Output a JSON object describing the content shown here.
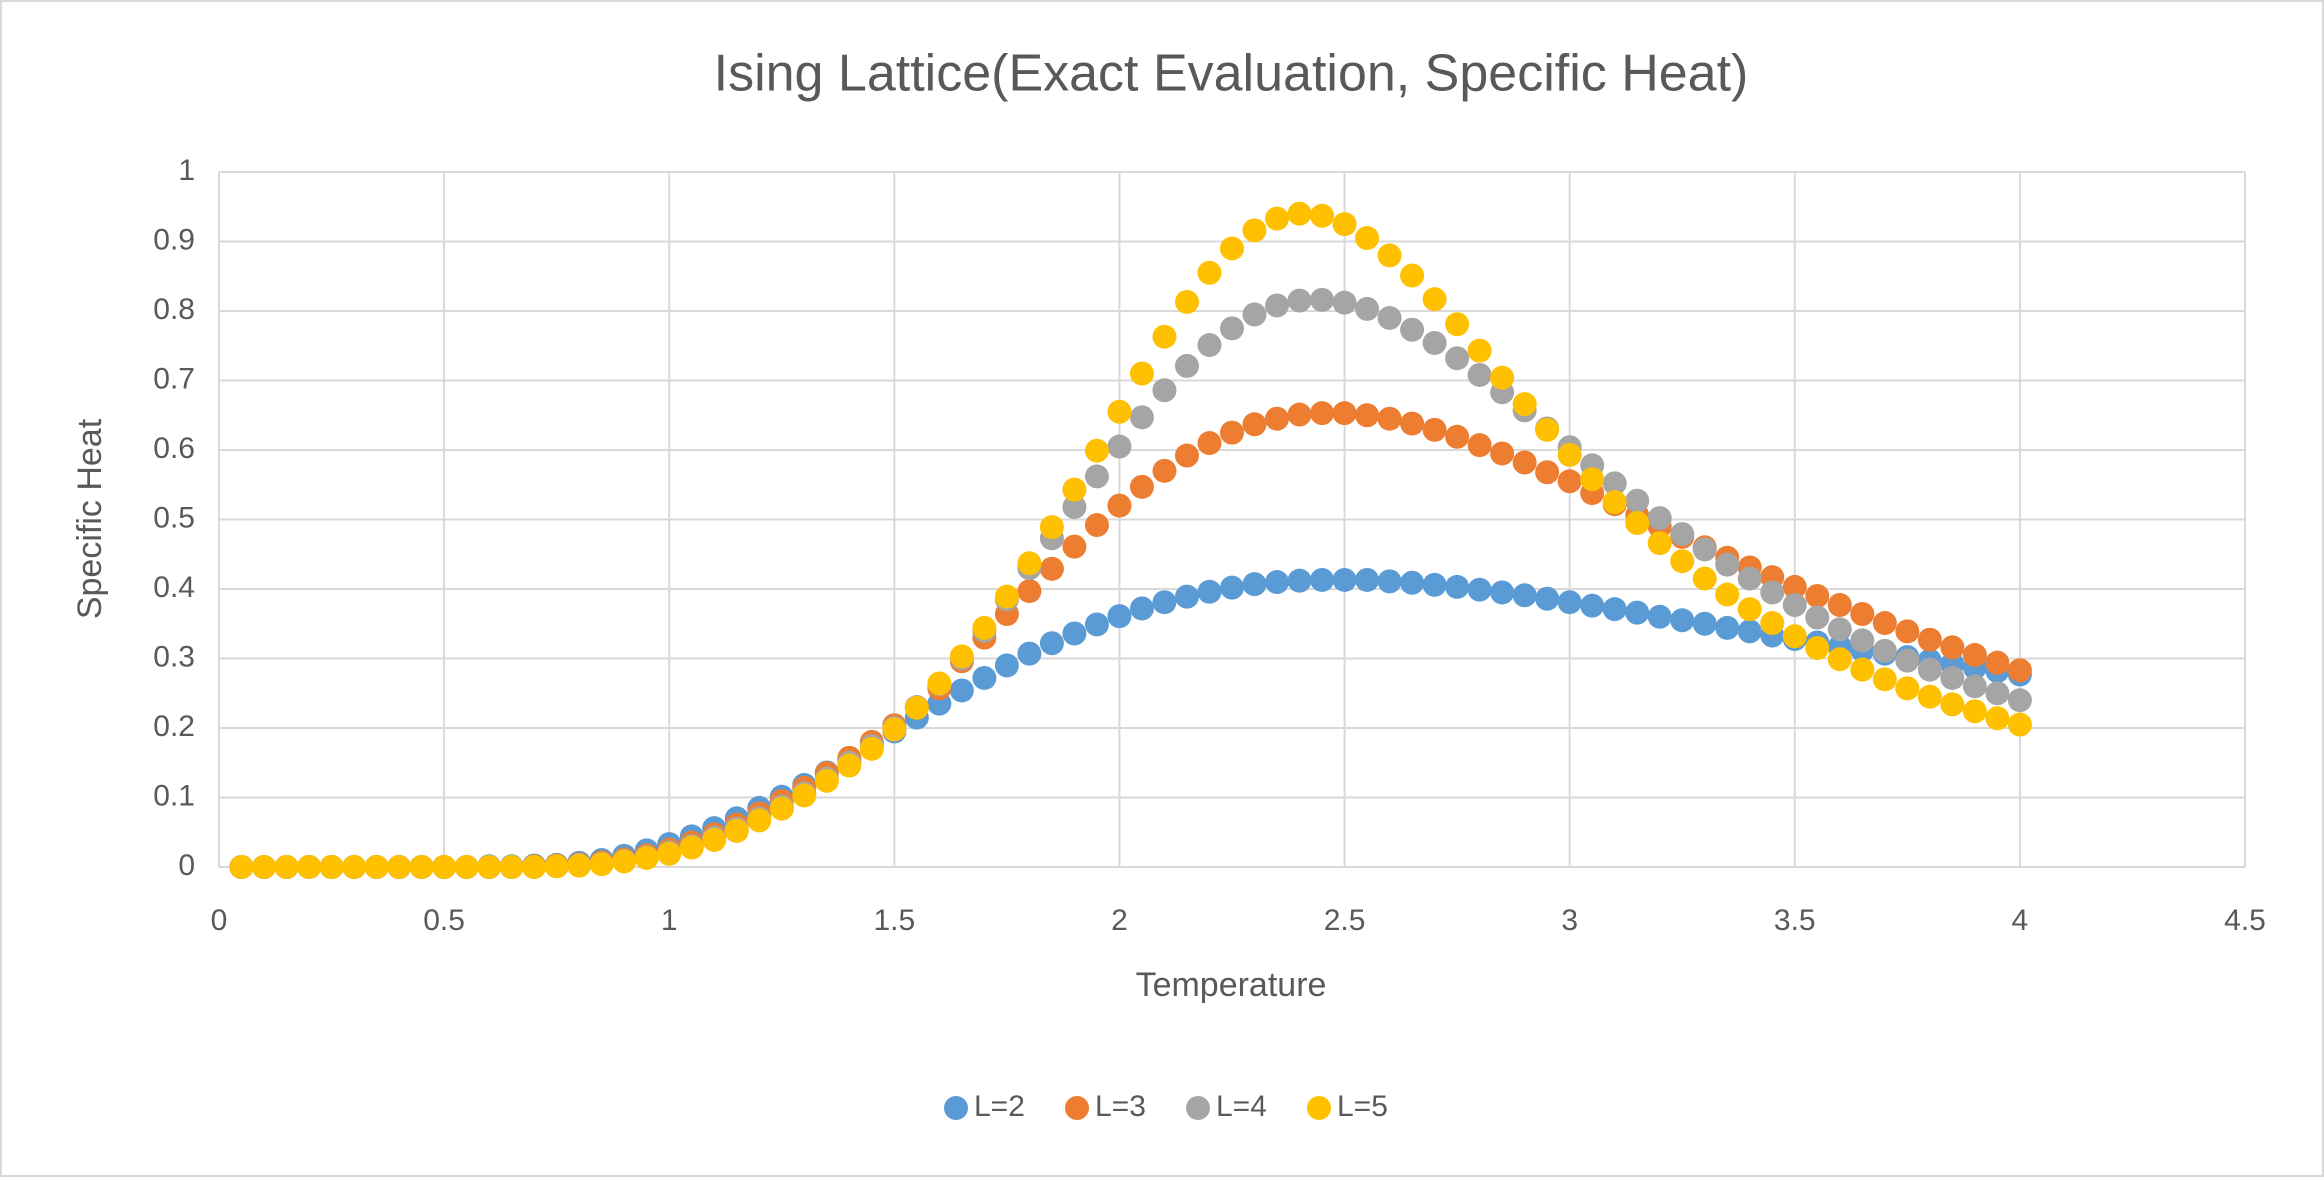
{
  "chart_data": {
    "type": "scatter",
    "title": "Ising Lattice(Exact Evaluation, Specific Heat)",
    "xlabel": "Temperature",
    "ylabel": "Specific Heat",
    "x": [
      0.05,
      0.1,
      0.15,
      0.2,
      0.25,
      0.3,
      0.35,
      0.4,
      0.45,
      0.5,
      0.55,
      0.6,
      0.65,
      0.7,
      0.75,
      0.8,
      0.85,
      0.9,
      0.95,
      1,
      1.05,
      1.1,
      1.15,
      1.2,
      1.25,
      1.3,
      1.35,
      1.4,
      1.45,
      1.5,
      1.55,
      1.6,
      1.65,
      1.7,
      1.75,
      1.8,
      1.85,
      1.9,
      1.95,
      2,
      2.05,
      2.1,
      2.15,
      2.2,
      2.25,
      2.3,
      2.35,
      2.4,
      2.45,
      2.5,
      2.55,
      2.6,
      2.65,
      2.7,
      2.75,
      2.8,
      2.85,
      2.9,
      2.95,
      3,
      3.05,
      3.1,
      3.15,
      3.2,
      3.25,
      3.3,
      3.35,
      3.4,
      3.45,
      3.5,
      3.55,
      3.6,
      3.65,
      3.7,
      3.75,
      3.8,
      3.85,
      3.9,
      3.95,
      4
    ],
    "series": [
      {
        "name": "L=2",
        "color": "#5b9bd5",
        "values": [
          0,
          0,
          0,
          0,
          0,
          0,
          0,
          0,
          0,
          0,
          0,
          0.001,
          0.001,
          0.002,
          0.003,
          0.006,
          0.01,
          0.016,
          0.024,
          0.033,
          0.044,
          0.056,
          0.07,
          0.085,
          0.101,
          0.118,
          0.136,
          0.155,
          0.175,
          0.195,
          0.215,
          0.235,
          0.254,
          0.272,
          0.29,
          0.307,
          0.322,
          0.336,
          0.349,
          0.361,
          0.372,
          0.381,
          0.389,
          0.396,
          0.402,
          0.407,
          0.41,
          0.412,
          0.413,
          0.413,
          0.413,
          0.411,
          0.409,
          0.406,
          0.403,
          0.399,
          0.395,
          0.391,
          0.386,
          0.381,
          0.376,
          0.371,
          0.366,
          0.36,
          0.355,
          0.35,
          0.344,
          0.339,
          0.333,
          0.328,
          0.323,
          0.317,
          0.312,
          0.307,
          0.302,
          0.297,
          0.292,
          0.287,
          0.282,
          0.277
        ]
      },
      {
        "name": "L=3",
        "color": "#ed7d31",
        "values": [
          0,
          0,
          0,
          0,
          0,
          0,
          0,
          0,
          0,
          0,
          0,
          0,
          0,
          0.001,
          0.002,
          0.004,
          0.007,
          0.011,
          0.017,
          0.025,
          0.035,
          0.047,
          0.061,
          0.077,
          0.095,
          0.114,
          0.135,
          0.157,
          0.18,
          0.204,
          0.23,
          0.257,
          0.296,
          0.33,
          0.364,
          0.397,
          0.429,
          0.461,
          0.492,
          0.52,
          0.547,
          0.57,
          0.592,
          0.61,
          0.625,
          0.637,
          0.645,
          0.651,
          0.653,
          0.653,
          0.65,
          0.645,
          0.638,
          0.629,
          0.619,
          0.607,
          0.595,
          0.582,
          0.568,
          0.555,
          0.538,
          0.522,
          0.506,
          0.49,
          0.475,
          0.46,
          0.445,
          0.431,
          0.417,
          0.403,
          0.39,
          0.377,
          0.364,
          0.351,
          0.339,
          0.327,
          0.316,
          0.305,
          0.294,
          0.283
        ]
      },
      {
        "name": "L=4",
        "color": "#a5a5a5",
        "values": [
          0,
          0,
          0,
          0,
          0,
          0,
          0,
          0,
          0,
          0,
          0,
          0,
          0,
          0,
          0.001,
          0.003,
          0.005,
          0.009,
          0.014,
          0.021,
          0.03,
          0.042,
          0.055,
          0.07,
          0.087,
          0.106,
          0.127,
          0.15,
          0.174,
          0.2,
          0.23,
          0.263,
          0.3,
          0.34,
          0.385,
          0.43,
          0.473,
          0.518,
          0.562,
          0.605,
          0.647,
          0.686,
          0.721,
          0.751,
          0.775,
          0.795,
          0.808,
          0.815,
          0.816,
          0.812,
          0.803,
          0.79,
          0.773,
          0.754,
          0.732,
          0.708,
          0.683,
          0.657,
          0.631,
          0.604,
          0.578,
          0.552,
          0.527,
          0.502,
          0.479,
          0.457,
          0.435,
          0.415,
          0.395,
          0.377,
          0.359,
          0.342,
          0.326,
          0.311,
          0.297,
          0.284,
          0.272,
          0.26,
          0.25,
          0.24
        ]
      },
      {
        "name": "L=5",
        "color": "#ffc000",
        "values": [
          0,
          0,
          0,
          0,
          0,
          0,
          0,
          0,
          0,
          0,
          0,
          0,
          0,
          0,
          0.001,
          0.002,
          0.004,
          0.008,
          0.013,
          0.019,
          0.028,
          0.039,
          0.052,
          0.067,
          0.084,
          0.103,
          0.124,
          0.146,
          0.17,
          0.198,
          0.229,
          0.264,
          0.303,
          0.344,
          0.389,
          0.437,
          0.489,
          0.543,
          0.599,
          0.655,
          0.71,
          0.763,
          0.813,
          0.855,
          0.89,
          0.916,
          0.933,
          0.94,
          0.937,
          0.925,
          0.905,
          0.88,
          0.851,
          0.817,
          0.781,
          0.743,
          0.704,
          0.666,
          0.629,
          0.593,
          0.558,
          0.525,
          0.495,
          0.466,
          0.44,
          0.415,
          0.392,
          0.371,
          0.351,
          0.332,
          0.315,
          0.299,
          0.284,
          0.27,
          0.257,
          0.245,
          0.234,
          0.224,
          0.214,
          0.205
        ]
      }
    ],
    "xlim": [
      0,
      4.5
    ],
    "xticks": [
      0,
      0.5,
      1,
      1.5,
      2,
      2.5,
      3,
      3.5,
      4,
      4.5
    ],
    "ylim": [
      0,
      1
    ],
    "yticks": [
      0,
      0.1,
      0.2,
      0.3,
      0.4,
      0.5,
      0.6,
      0.7,
      0.8,
      0.9,
      1
    ],
    "grid": true,
    "legend": "bottom"
  }
}
